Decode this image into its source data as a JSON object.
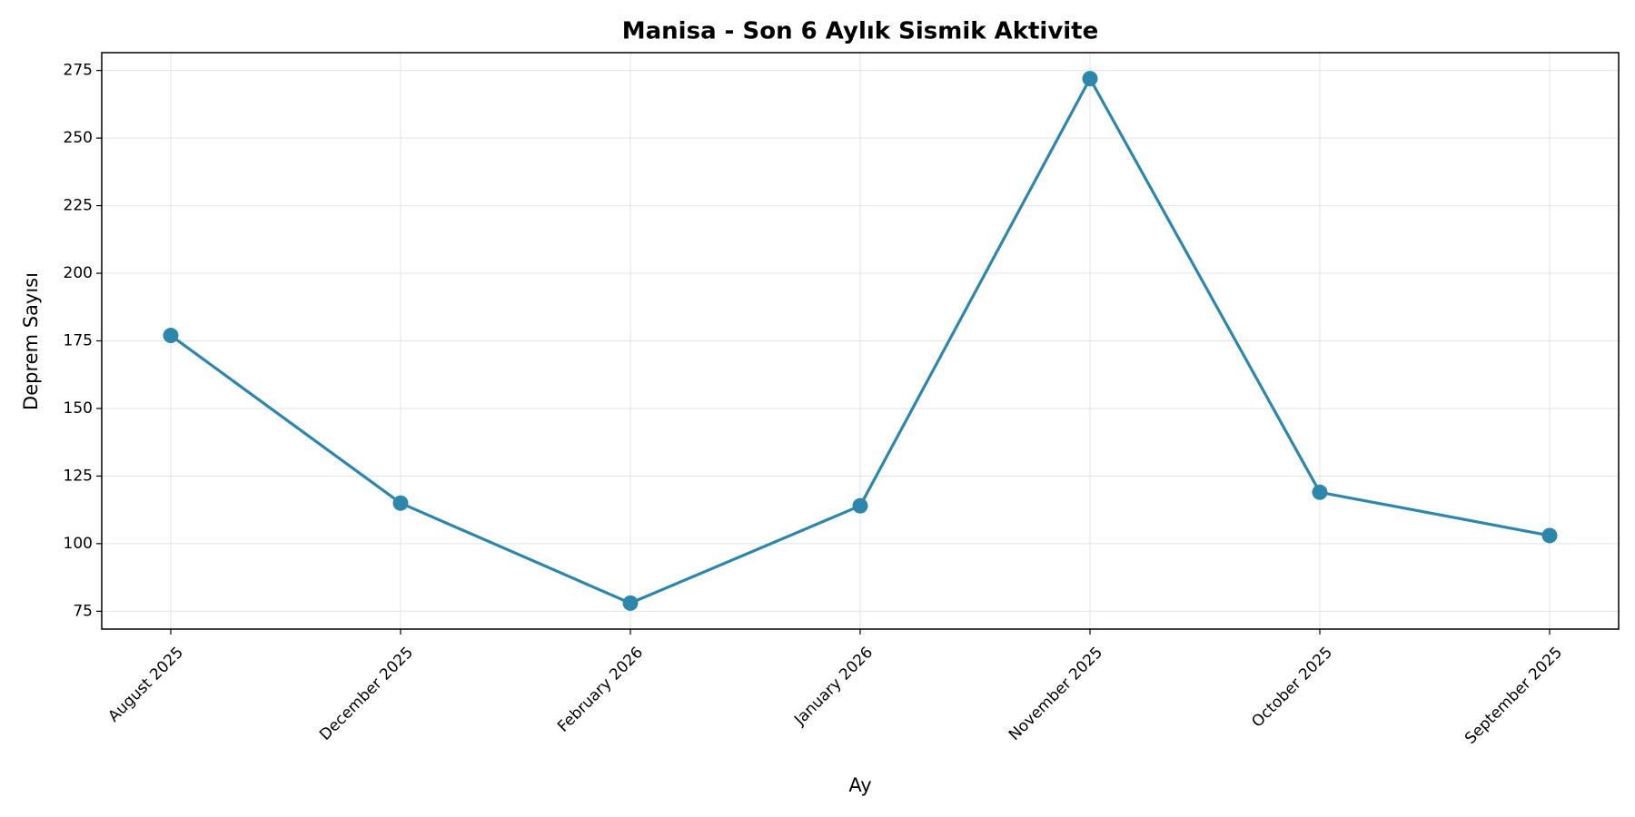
{
  "chart_data": {
    "type": "line",
    "title": "Manisa - Son 6 Aylık Sismik Aktivite",
    "x_label": "Ay",
    "y_label": "Deprem Sayısı",
    "categories": [
      "August 2025",
      "December 2025",
      "February 2026",
      "January 2026",
      "November 2025",
      "October 2025",
      "September 2025"
    ],
    "values": [
      177,
      115,
      78,
      114,
      272,
      119,
      103
    ],
    "color": "#2e86ab",
    "ylim": [
      68.4,
      281.6
    ],
    "yticks": [
      75,
      100,
      125,
      150,
      175,
      200,
      225,
      250,
      275
    ],
    "grid": true
  }
}
